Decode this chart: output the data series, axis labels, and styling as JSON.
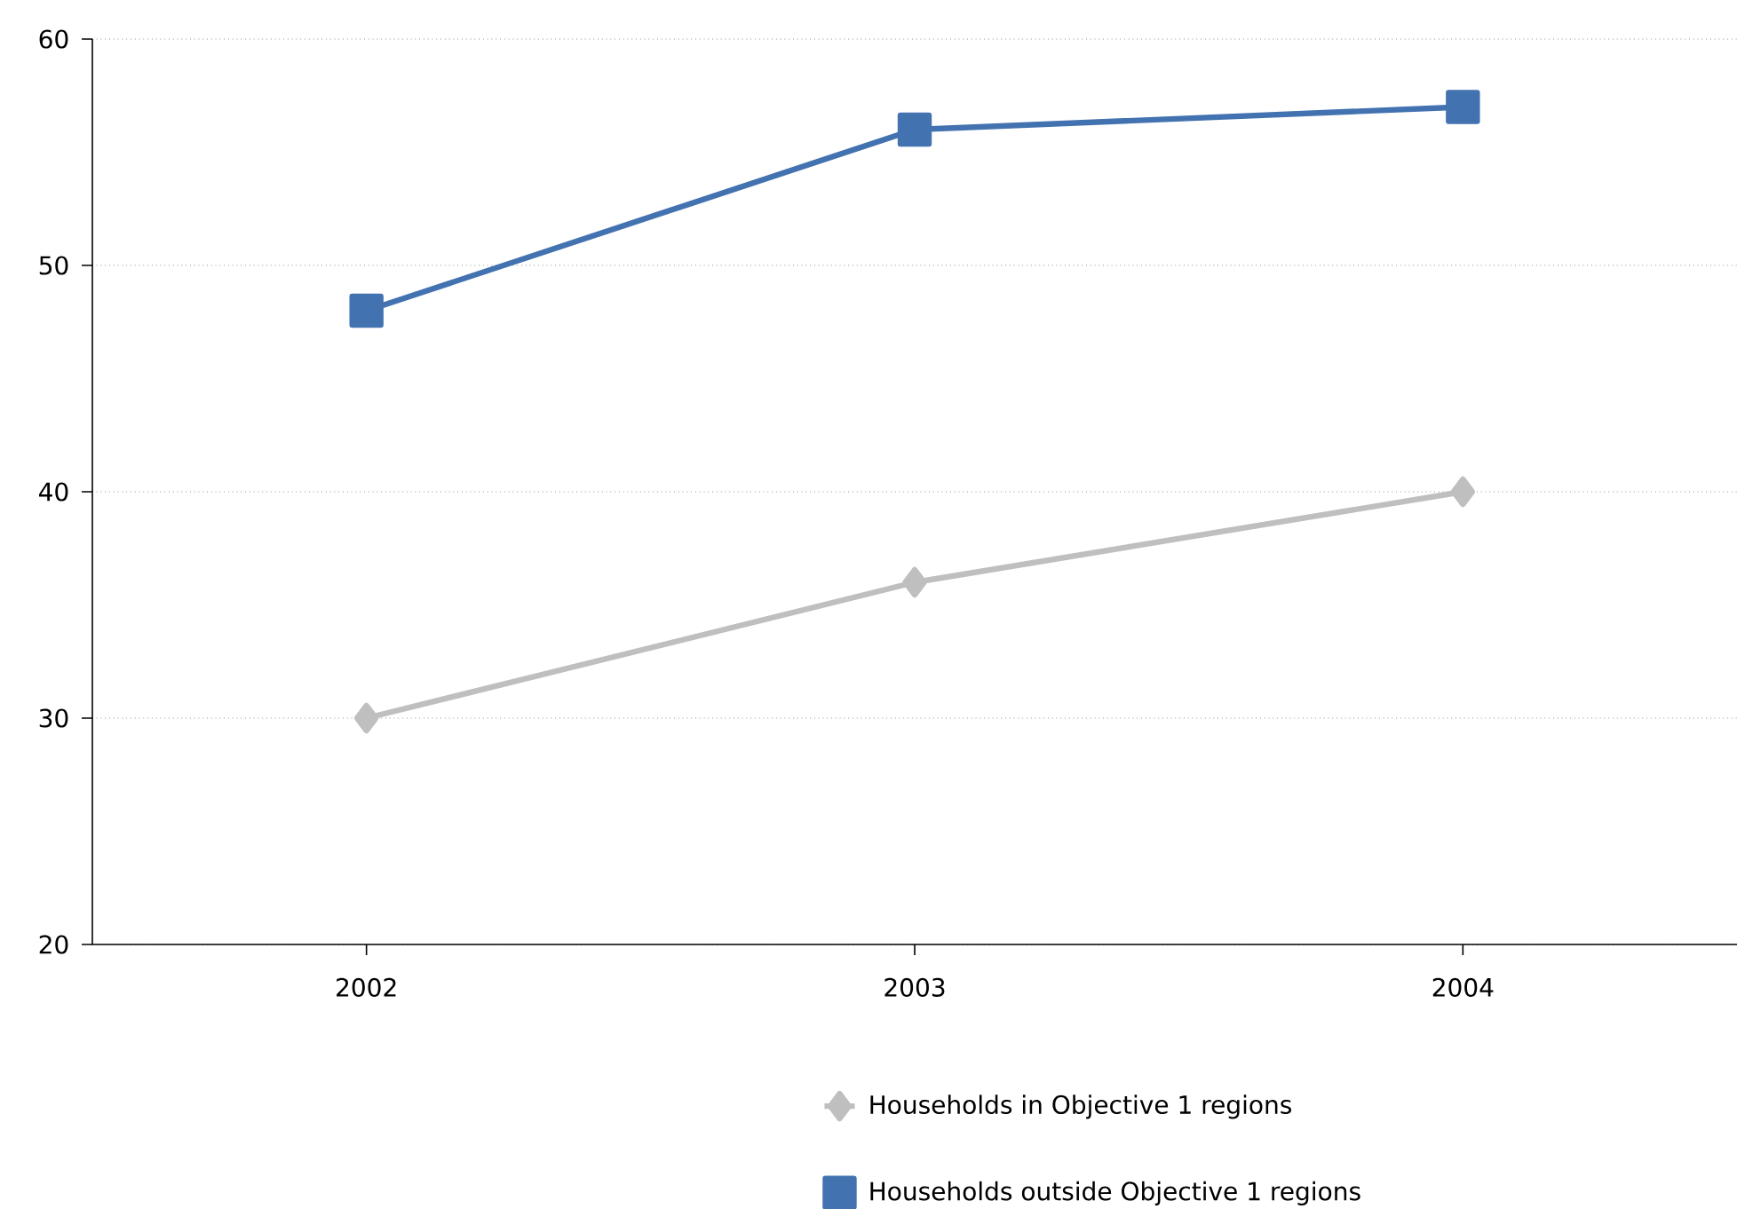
{
  "chart_data": {
    "type": "line",
    "categories": [
      "2002",
      "2003",
      "2004"
    ],
    "series": [
      {
        "name": "Households in Objective 1 regions",
        "color": "#bfbfbf",
        "marker": "diamond",
        "values": [
          30,
          36,
          40
        ]
      },
      {
        "name": "Households outside Objective 1 regions",
        "color": "#4372b0",
        "marker": "square",
        "values": [
          48,
          56,
          57
        ]
      }
    ],
    "ylim": [
      20,
      60
    ],
    "yticks": [
      20,
      30,
      40,
      50,
      60
    ],
    "grid": "y",
    "legend": "bottom"
  }
}
